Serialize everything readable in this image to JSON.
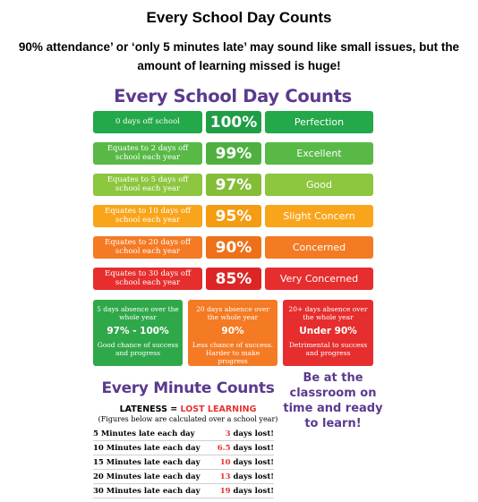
{
  "heading": "Every School Day Counts",
  "intro": "90% attendance’ or ‘only 5 minutes late’ may sound like small issues, but the amount of learning missed is huge!",
  "poster": {
    "title": "Every School Day Counts",
    "rows": [
      {
        "desc": "0 days off school",
        "pct": "100%",
        "label": "Perfection",
        "color_desc": "#23a84a",
        "color_pct": "#1f9e45",
        "color_label": "#23a84a"
      },
      {
        "desc": "Equates to 2 days off school each year",
        "pct": "99%",
        "label": "Excellent",
        "color_desc": "#58b947",
        "color_pct": "#4fb03f",
        "color_label": "#58b947"
      },
      {
        "desc": "Equates to 5 days off school each year",
        "pct": "97%",
        "label": "Good",
        "color_desc": "#8dc63f",
        "color_pct": "#84bd37",
        "color_label": "#8dc63f"
      },
      {
        "desc": "Equates to 10 days off school each year",
        "pct": "95%",
        "label": "Slight Concern",
        "color_desc": "#f9a51b",
        "color_pct": "#f49c12",
        "color_label": "#f9a51b"
      },
      {
        "desc": "Equates to 20 days off school each year",
        "pct": "90%",
        "label": "Concerned",
        "color_desc": "#f47a24",
        "color_pct": "#ee711a",
        "color_label": "#f47a24"
      },
      {
        "desc": "Equates to 30 days off school each year",
        "pct": "85%",
        "label": "Very Concerned",
        "color_desc": "#e62e2e",
        "color_pct": "#dc2626",
        "color_label": "#e62e2e"
      }
    ],
    "boxes": [
      {
        "top": "5 days absence over the whole year",
        "mid": "97% - 100%",
        "bot": "Good chance of success and progress",
        "color": "#2fa84a"
      },
      {
        "top": "20 days absence over the whole year",
        "mid": "90%",
        "bot": "Less chance of success. Harder to make progress",
        "color": "#f47a24"
      },
      {
        "top": "20+ days absence over the whole year",
        "mid": "Under 90%",
        "bot": "Detrimental to success and progress",
        "color": "#e62e2e"
      }
    ],
    "minute_title": "Every Minute Counts",
    "lateness_prefix": "LATENESS",
    "lateness_equals": " = ",
    "lateness_lost": "LOST LEARNING",
    "calc_note": "(Figures below are calculated over a school year)",
    "late_rows": [
      {
        "left": "5 Minutes late each day",
        "num": "3",
        "suffix": " days lost!"
      },
      {
        "left": "10 Minutes late each day",
        "num": "6.5",
        "suffix": " days lost!"
      },
      {
        "left": "15 Minutes late each day",
        "num": "10",
        "suffix": " days lost!"
      },
      {
        "left": "20 Minutes late each day",
        "num": "13",
        "suffix": " days lost!"
      },
      {
        "left": "30 Minutes late each day",
        "num": "19",
        "suffix": " days lost!"
      }
    ],
    "reminder": "Be at the classroom on time and ready to learn!"
  }
}
